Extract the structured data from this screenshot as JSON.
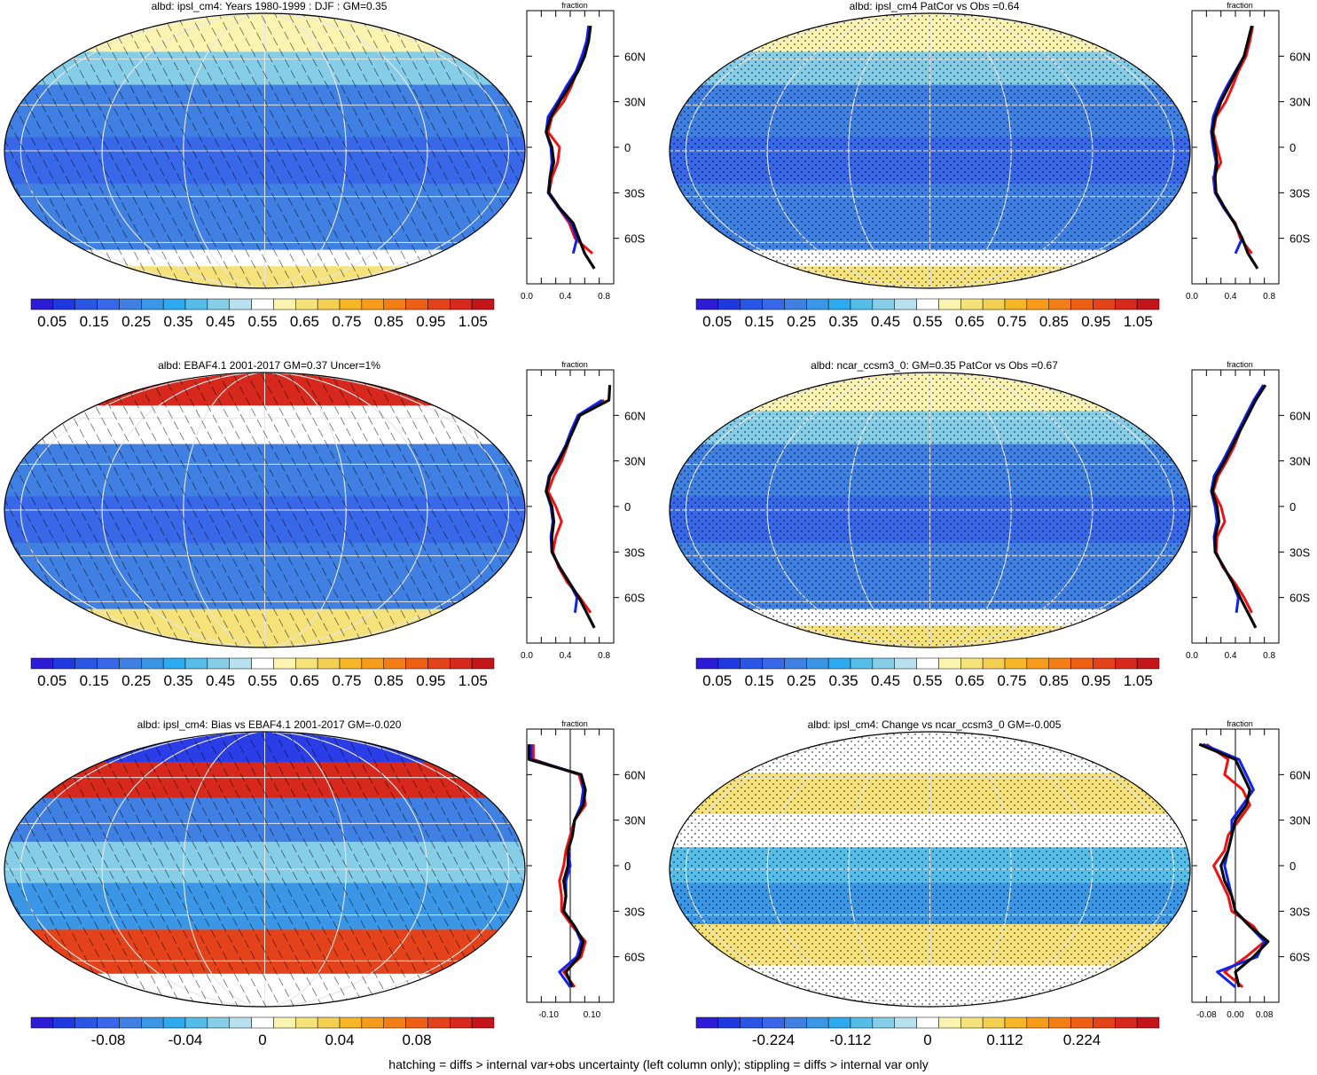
{
  "figure": {
    "footer": "hatching = diffs > internal var+obs uncertainty (left column only); stippling = diffs > internal var only"
  },
  "colors": {
    "line_model": "#0a0a0a",
    "line_obs": "#ee1111",
    "line_ref": "#1122ee",
    "land_cyan": "#4fb3e8",
    "ocean_blue": "#3f8fe0"
  },
  "chart_data": [
    {
      "type": "heatmap",
      "title": "albd: ipsl_cm4: Years 1980-1999 : DJF : GM=0.35",
      "overlay": "hatching",
      "colorbar": {
        "labels": [
          "0.05",
          "0.15",
          "0.25",
          "0.35",
          "0.45",
          "0.55",
          "0.65",
          "0.75",
          "0.85",
          "0.95",
          "1.05"
        ],
        "range": [
          0,
          1.1
        ]
      },
      "zonal": {
        "title": "fraction",
        "xlim": [
          0,
          0.9
        ],
        "xticks": [
          "0.0",
          "0.4",
          "0.8"
        ],
        "ylim": [
          -90,
          90
        ],
        "yticks": [
          "60N",
          "30N",
          "0",
          "30S",
          "60S"
        ],
        "zeroline": false,
        "lat": [
          80,
          70,
          60,
          50,
          40,
          30,
          20,
          10,
          0,
          -10,
          -20,
          -30,
          -40,
          -50,
          -60,
          -70,
          -80
        ],
        "series": [
          {
            "color": "#0a0a0a",
            "values": [
              0.66,
              0.64,
              0.6,
              0.53,
              0.44,
              0.34,
              0.25,
              0.2,
              0.26,
              0.28,
              0.24,
              0.23,
              0.34,
              0.48,
              0.54,
              0.6,
              0.7
            ]
          },
          {
            "color": "#ee1111",
            "values": [
              0.65,
              0.62,
              0.58,
              0.52,
              0.46,
              0.38,
              0.26,
              0.22,
              0.34,
              0.32,
              0.26,
              0.23,
              0.33,
              0.44,
              0.5,
              0.68,
              null
            ]
          },
          {
            "color": "#1122ee",
            "values": [
              0.64,
              0.62,
              0.57,
              0.51,
              0.41,
              0.32,
              0.22,
              0.2,
              0.25,
              0.26,
              0.24,
              0.22,
              0.33,
              0.46,
              0.52,
              0.48,
              null
            ]
          }
        ]
      }
    },
    {
      "type": "heatmap",
      "title": "albd: ipsl_cm4 PatCor vs Obs =0.64",
      "overlay": "stipple",
      "colorbar": {
        "labels": [
          "0.05",
          "0.15",
          "0.25",
          "0.35",
          "0.45",
          "0.55",
          "0.65",
          "0.75",
          "0.85",
          "0.95",
          "1.05"
        ],
        "range": [
          0,
          1.1
        ]
      },
      "zonal": {
        "title": "fraction",
        "xlim": [
          0,
          0.9
        ],
        "xticks": [
          "0.0",
          "0.4",
          "0.8"
        ],
        "ylim": [
          -90,
          90
        ],
        "yticks": [
          "60N",
          "30N",
          "0",
          "30S",
          "60S"
        ],
        "zeroline": false,
        "lat": [
          80,
          70,
          60,
          50,
          40,
          30,
          20,
          10,
          0,
          -10,
          -20,
          -30,
          -40,
          -50,
          -60,
          -70,
          -80
        ],
        "series": [
          {
            "color": "#0a0a0a",
            "values": [
              0.62,
              0.58,
              0.54,
              0.46,
              0.38,
              0.3,
              0.24,
              0.21,
              0.24,
              0.26,
              0.24,
              0.25,
              0.34,
              0.44,
              0.52,
              0.58,
              0.68
            ]
          },
          {
            "color": "#ee1111",
            "values": [
              0.63,
              0.6,
              0.56,
              0.48,
              0.42,
              0.35,
              0.25,
              0.22,
              0.26,
              0.3,
              0.22,
              0.24,
              0.33,
              0.45,
              0.5,
              0.62,
              null
            ]
          },
          {
            "color": "#1122ee",
            "values": [
              0.62,
              0.58,
              0.54,
              0.45,
              0.36,
              0.28,
              0.22,
              0.2,
              0.22,
              0.25,
              0.23,
              0.24,
              0.33,
              0.44,
              0.52,
              0.45,
              null
            ]
          }
        ]
      }
    },
    {
      "type": "heatmap",
      "title": "albd: EBAF4.1 2001-2017 GM=0.37 Uncer=1%",
      "overlay": "hatching",
      "colorbar": {
        "labels": [
          "0.05",
          "0.15",
          "0.25",
          "0.35",
          "0.45",
          "0.55",
          "0.65",
          "0.75",
          "0.85",
          "0.95",
          "1.05"
        ],
        "range": [
          0,
          1.1
        ]
      },
      "zonal": {
        "title": "fraction",
        "xlim": [
          0,
          0.9
        ],
        "xticks": [
          "0.0",
          "0.4",
          "0.8"
        ],
        "ylim": [
          -90,
          90
        ],
        "yticks": [
          "60N",
          "30N",
          "0",
          "30S",
          "60S"
        ],
        "zeroline": false,
        "lat": [
          80,
          70,
          60,
          50,
          40,
          30,
          20,
          10,
          0,
          -10,
          -20,
          -30,
          -40,
          -50,
          -60,
          -70,
          -80
        ],
        "series": [
          {
            "color": "#0a0a0a",
            "values": [
              0.86,
              0.85,
              0.55,
              0.48,
              0.41,
              0.33,
              0.24,
              0.2,
              0.26,
              0.28,
              0.26,
              0.26,
              0.34,
              0.44,
              0.54,
              0.62,
              0.7
            ]
          },
          {
            "color": "#ee1111",
            "values": [
              null,
              0.8,
              0.54,
              0.47,
              0.42,
              0.36,
              0.28,
              0.22,
              0.3,
              0.36,
              0.3,
              0.27,
              0.33,
              0.42,
              0.55,
              0.66,
              null
            ]
          },
          {
            "color": "#1122ee",
            "values": [
              null,
              0.78,
              0.53,
              0.46,
              0.4,
              0.32,
              0.23,
              0.2,
              0.25,
              0.27,
              0.25,
              0.26,
              0.34,
              0.44,
              0.52,
              0.5,
              null
            ]
          }
        ]
      }
    },
    {
      "type": "heatmap",
      "title": "albd: ncar_ccsm3_0: GM=0.35 PatCor vs Obs =0.67",
      "overlay": "stipple",
      "colorbar": {
        "labels": [
          "0.05",
          "0.15",
          "0.25",
          "0.35",
          "0.45",
          "0.55",
          "0.65",
          "0.75",
          "0.85",
          "0.95",
          "1.05"
        ],
        "range": [
          0,
          1.1
        ]
      },
      "zonal": {
        "title": "fraction",
        "xlim": [
          0,
          0.9
        ],
        "xticks": [
          "0.0",
          "0.4",
          "0.8"
        ],
        "ylim": [
          -90,
          90
        ],
        "yticks": [
          "60N",
          "30N",
          "0",
          "30S",
          "60S"
        ],
        "zeroline": false,
        "lat": [
          80,
          70,
          60,
          50,
          40,
          30,
          20,
          10,
          0,
          -10,
          -20,
          -30,
          -40,
          -50,
          -60,
          -70,
          -80
        ],
        "series": [
          {
            "color": "#0a0a0a",
            "values": [
              0.76,
              0.66,
              0.58,
              0.5,
              0.42,
              0.34,
              0.25,
              0.21,
              0.26,
              0.28,
              0.24,
              0.24,
              0.33,
              0.42,
              0.5,
              0.58,
              0.66
            ]
          },
          {
            "color": "#ee1111",
            "values": [
              0.74,
              0.65,
              0.57,
              0.5,
              0.44,
              0.36,
              0.27,
              0.22,
              0.3,
              0.34,
              0.26,
              0.25,
              0.32,
              0.44,
              0.54,
              0.62,
              null
            ]
          },
          {
            "color": "#1122ee",
            "values": [
              0.74,
              0.64,
              0.56,
              0.48,
              0.4,
              0.32,
              0.23,
              0.2,
              0.24,
              0.26,
              0.23,
              0.24,
              0.33,
              0.42,
              0.48,
              0.46,
              null
            ]
          }
        ]
      }
    },
    {
      "type": "heatmap",
      "title": "albd: ipsl_cm4: Bias vs EBAF4.1 2001-2017 GM=-0.020",
      "overlay": "hatching",
      "colorbar": {
        "labels": [
          "-0.08",
          "-0.04",
          "0",
          "0.04",
          "0.08"
        ],
        "range": [
          -0.12,
          0.12
        ]
      },
      "zonal": {
        "title": "fraction",
        "xlim": [
          -0.2,
          0.2
        ],
        "xticks": [
          "-0.10",
          "0.10"
        ],
        "ylim": [
          -90,
          90
        ],
        "yticks": [
          "60N",
          "30N",
          "0",
          "30S",
          "60S"
        ],
        "zeroline": true,
        "lat": [
          80,
          70,
          60,
          50,
          40,
          30,
          20,
          10,
          0,
          -10,
          -20,
          -30,
          -40,
          -50,
          -60,
          -70,
          -80
        ],
        "series": [
          {
            "color": "#0a0a0a",
            "values": [
              -0.19,
              -0.19,
              0.05,
              0.07,
              0.06,
              0.02,
              0.01,
              -0.01,
              -0.01,
              -0.03,
              -0.02,
              -0.03,
              0.02,
              0.06,
              0.04,
              -0.02,
              0.01
            ]
          },
          {
            "color": "#ee1111",
            "values": [
              -0.17,
              -0.17,
              0.04,
              0.06,
              0.07,
              0.02,
              0.0,
              -0.02,
              -0.03,
              -0.05,
              -0.04,
              -0.04,
              0.01,
              0.07,
              0.05,
              -0.03,
              0.02
            ]
          },
          {
            "color": "#1122ee",
            "values": [
              -0.18,
              -0.18,
              0.05,
              0.06,
              0.05,
              0.02,
              0.01,
              -0.01,
              0.0,
              -0.02,
              -0.02,
              -0.03,
              0.02,
              0.05,
              0.03,
              -0.05,
              0.0
            ]
          }
        ]
      }
    },
    {
      "type": "heatmap",
      "title": "albd: ipsl_cm4: Change vs ncar_ccsm3_0 GM=-0.005",
      "overlay": "stipple",
      "colorbar": {
        "labels": [
          "-0.224",
          "-0.112",
          "0",
          "0.112",
          "0.224"
        ],
        "range": [
          -0.336,
          0.336
        ]
      },
      "zonal": {
        "title": "fraction",
        "xlim": [
          -0.12,
          0.12
        ],
        "xticks": [
          "-0.08",
          "0.00",
          "0.08"
        ],
        "ylim": [
          -90,
          90
        ],
        "yticks": [
          "60N",
          "30N",
          "0",
          "30S",
          "60S"
        ],
        "zeroline": true,
        "lat": [
          80,
          70,
          60,
          50,
          40,
          30,
          20,
          10,
          0,
          -10,
          -20,
          -30,
          -40,
          -50,
          -60,
          -70,
          -80
        ],
        "series": [
          {
            "color": "#0a0a0a",
            "values": [
              -0.1,
              0.0,
              0.02,
              0.04,
              0.03,
              0.0,
              -0.01,
              -0.02,
              -0.04,
              -0.03,
              -0.01,
              0.0,
              0.04,
              0.09,
              0.05,
              0.0,
              0.01
            ]
          },
          {
            "color": "#ee1111",
            "values": [
              -0.08,
              -0.02,
              -0.03,
              0.02,
              0.04,
              0.01,
              -0.02,
              -0.03,
              -0.06,
              -0.04,
              -0.02,
              -0.01,
              0.05,
              0.08,
              0.03,
              -0.03,
              0.02
            ]
          },
          {
            "color": "#1122ee",
            "values": [
              -0.09,
              0.01,
              0.03,
              0.05,
              0.02,
              -0.01,
              -0.01,
              -0.02,
              -0.03,
              -0.02,
              -0.01,
              0.0,
              0.04,
              0.08,
              0.06,
              -0.05,
              0.0
            ]
          }
        ]
      }
    }
  ]
}
